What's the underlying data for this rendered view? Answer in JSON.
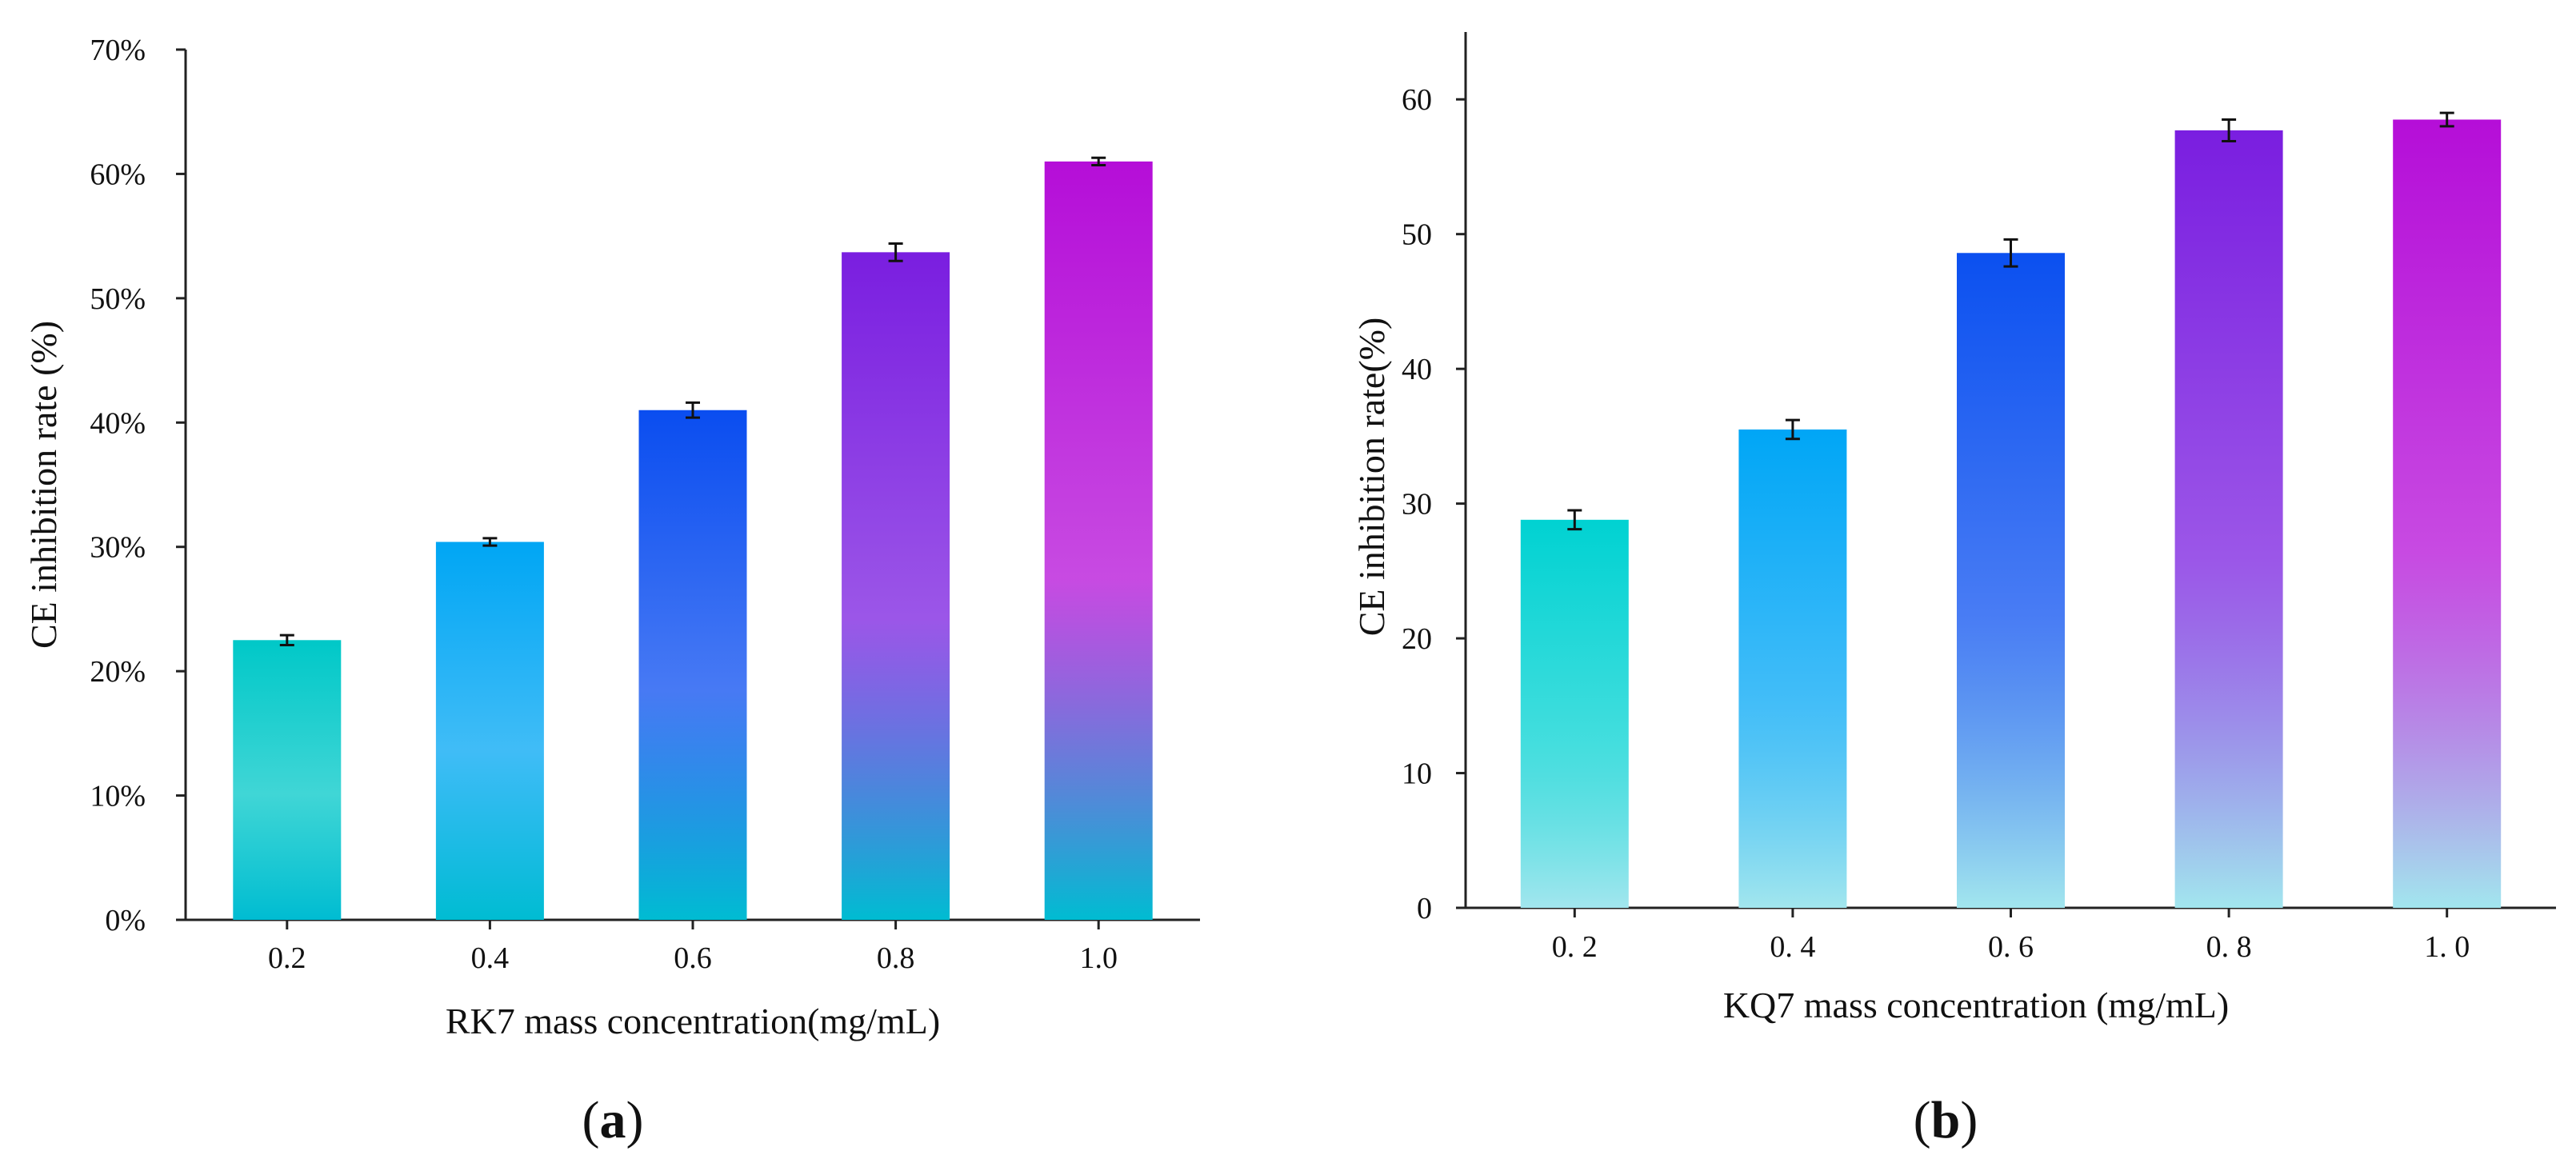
{
  "chart_data": [
    {
      "type": "bar",
      "panel_label": "a",
      "categories": [
        "0.2",
        "0.4",
        "0.6",
        "0.8",
        "1.0"
      ],
      "values": [
        22.5,
        30.4,
        41.0,
        53.7,
        61.0
      ],
      "errors": [
        0.4,
        0.3,
        0.6,
        0.7,
        0.3
      ],
      "bar_colors": [
        "#00c8c8",
        "#00a6f4",
        "#0a4df0",
        "#7a1ee0",
        "#b50ed8"
      ],
      "base_color": "#00bcd2",
      "ylim": [
        0,
        70
      ],
      "yticks": [
        0,
        10,
        20,
        30,
        40,
        50,
        60,
        70
      ],
      "ytick_labels": [
        "0%",
        "10%",
        "20%",
        "30%",
        "40%",
        "50%",
        "60%",
        "70%"
      ],
      "xlabel": "RK7 mass concentration(mg/mL)",
      "ylabel": "CE inhibition rate (%)",
      "grid": false
    },
    {
      "type": "bar",
      "panel_label": "b",
      "categories": [
        "0. 2",
        "0. 4",
        "0. 6",
        "0. 8",
        "1. 0"
      ],
      "values": [
        28.8,
        35.5,
        48.6,
        57.7,
        58.5
      ],
      "errors": [
        0.7,
        0.7,
        1.0,
        0.8,
        0.5
      ],
      "bar_colors": [
        "#00d2d2",
        "#00a6f6",
        "#0b50f0",
        "#7a1ee0",
        "#b50ed8"
      ],
      "base_color": "#a2e6ee",
      "ylim": [
        0,
        65
      ],
      "yticks": [
        0,
        10,
        20,
        30,
        40,
        50,
        60
      ],
      "ytick_labels": [
        "0",
        "10",
        "20",
        "30",
        "40",
        "50",
        "60"
      ],
      "xlabel": "KQ7 mass concentration (mg/mL)",
      "ylabel": "CE inhibition rate(%)",
      "grid": false
    }
  ]
}
